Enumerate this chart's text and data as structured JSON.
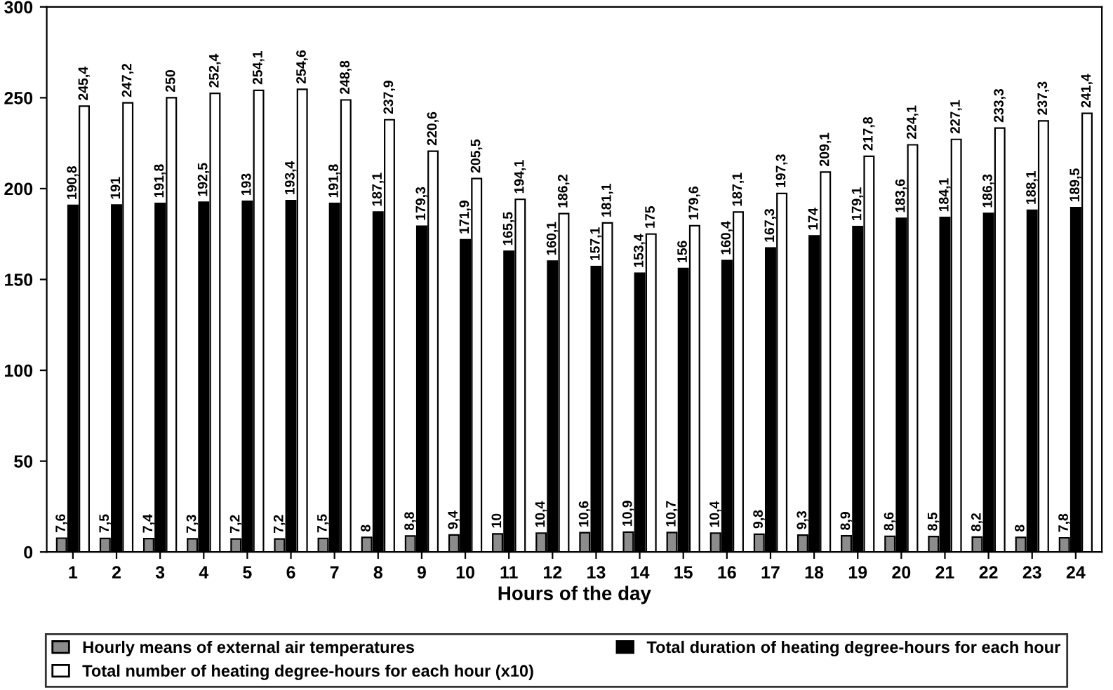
{
  "chart_data": {
    "type": "bar",
    "xlabel": "Hours of the day",
    "categories": [
      "1",
      "2",
      "3",
      "4",
      "5",
      "6",
      "7",
      "8",
      "9",
      "10",
      "11",
      "12",
      "13",
      "14",
      "15",
      "16",
      "17",
      "18",
      "19",
      "20",
      "21",
      "22",
      "23",
      "24"
    ],
    "ylim": [
      0,
      300
    ],
    "yticks": [
      0,
      50,
      100,
      150,
      200,
      250,
      300
    ],
    "grid": false,
    "legend": "bottom",
    "series": [
      {
        "name": "Hourly means of external air temperatures",
        "color": "#8c8c8c",
        "values": [
          7.6,
          7.5,
          7.4,
          7.3,
          7.2,
          7.2,
          7.5,
          8,
          8.8,
          9.4,
          10,
          10.4,
          10.6,
          10.9,
          10.7,
          10.4,
          9.8,
          9.3,
          8.9,
          8.6,
          8.5,
          8.2,
          8,
          7.8
        ],
        "value_labels": [
          "7,6",
          "7,5",
          "7,4",
          "7,3",
          "7,2",
          "7,2",
          "7,5",
          "8",
          "8,8",
          "9,4",
          "10",
          "10,4",
          "10,6",
          "10,9",
          "10,7",
          "10,4",
          "9,8",
          "9,3",
          "8,9",
          "8,6",
          "8,5",
          "8,2",
          "8",
          "7,8"
        ]
      },
      {
        "name": "Total duration of heating degree-hours for each hour",
        "color": "#000000",
        "values": [
          190.8,
          191,
          191.8,
          192.5,
          193,
          193.4,
          191.8,
          187.1,
          179.3,
          171.9,
          165.5,
          160.1,
          157.1,
          153.4,
          156,
          160.4,
          167.3,
          174,
          179.1,
          183.6,
          184.1,
          186.3,
          188.1,
          189.5
        ],
        "value_labels": [
          "190,8",
          "191",
          "191,8",
          "192,5",
          "193",
          "193,4",
          "191,8",
          "187,1",
          "179,3",
          "171,9",
          "165,5",
          "160,1",
          "157,1",
          "153,4",
          "156",
          "160,4",
          "167,3",
          "174",
          "179,1",
          "183,6",
          "184,1",
          "186,3",
          "188,1",
          "189,5"
        ]
      },
      {
        "name": "Total number of heating degree-hours for each hour (x10)",
        "color": "#ffffff",
        "values": [
          245.4,
          247.2,
          250,
          252.4,
          254.1,
          254.6,
          248.8,
          237.9,
          220.6,
          205.5,
          194.1,
          186.2,
          181.1,
          175,
          179.6,
          187.1,
          197.3,
          209.1,
          217.8,
          224.1,
          227.1,
          233.3,
          237.3,
          241.4
        ],
        "value_labels": [
          "245,4",
          "247,2",
          "250",
          "252,4",
          "254,1",
          "254,6",
          "248,8",
          "237,9",
          "220,6",
          "205,5",
          "194,1",
          "186,2",
          "181,1",
          "175",
          "179,6",
          "187,1",
          "197,3",
          "209,1",
          "217,8",
          "224,1",
          "227,1",
          "233,3",
          "237,3",
          "241,4"
        ]
      }
    ]
  }
}
